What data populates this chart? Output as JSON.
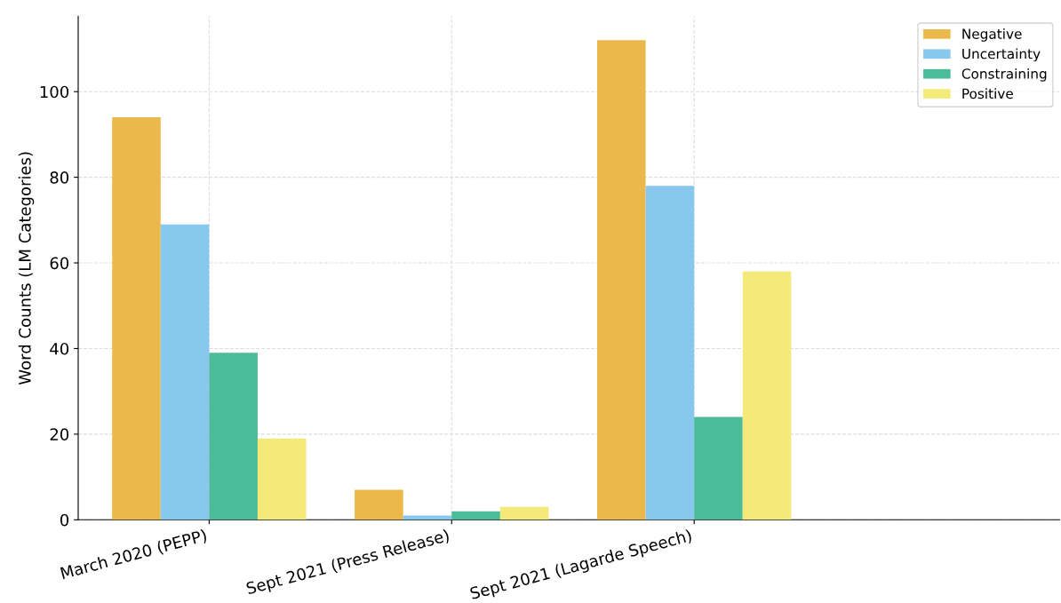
{
  "chart_data": {
    "type": "bar",
    "ylabel": "Word Counts (LM Categories)",
    "categories": [
      "March 2020 (PEPP)",
      "Sept 2021 (Press Release)",
      "Sept 2021 (Lagarde Speech)"
    ],
    "series": [
      {
        "name": "Negative",
        "color": "#ebb94b",
        "values": [
          94,
          7,
          112
        ]
      },
      {
        "name": "Uncertainty",
        "color": "#89c8ee",
        "values": [
          69,
          1,
          78
        ]
      },
      {
        "name": "Constraining",
        "color": "#4cbb9a",
        "values": [
          39,
          2,
          24
        ]
      },
      {
        "name": "Positive",
        "color": "#f3ea7a",
        "values": [
          19,
          3,
          58
        ]
      }
    ],
    "ylim": [
      0,
      117.6
    ],
    "yticks": [
      0,
      20,
      40,
      60,
      80,
      100
    ],
    "grid": true,
    "legend": "top right"
  }
}
